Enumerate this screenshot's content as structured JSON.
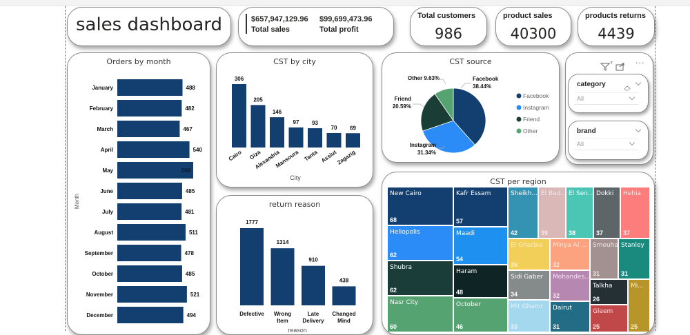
{
  "header": {
    "title": "sales dashboard",
    "total_sales_value": "$657,947,129.96",
    "total_sales_label": "Total sales",
    "total_profit_value": "$99,699,473.96",
    "total_profit_label": "Total profit"
  },
  "kpis": [
    {
      "label": "Total customers",
      "value": "986"
    },
    {
      "label": "product sales",
      "value": "40300"
    },
    {
      "label": "products returns",
      "value": "4439"
    }
  ],
  "colors": {
    "bar": "#123e70",
    "facebook": "#123e70",
    "instagram": "#2b8bf7",
    "friend": "#1a3d35",
    "other": "#56a372"
  },
  "slicers": {
    "toolbar": {
      "filter_icon": "filter-icon",
      "focus_icon": "focus-mode-icon",
      "more_icon": "more-options-icon",
      "more_label": "···"
    },
    "category": {
      "label": "category",
      "value": "All"
    },
    "brand": {
      "label": "brand",
      "value": "All"
    }
  },
  "chart_data": [
    {
      "id": "orders_by_month",
      "type": "bar",
      "orientation": "horizontal",
      "title": "Orders by month",
      "xlabel": "",
      "ylabel": "Month",
      "categories": [
        "January",
        "February",
        "March",
        "April",
        "May",
        "June",
        "July",
        "August",
        "September",
        "October",
        "November",
        "December"
      ],
      "values": [
        488,
        482,
        467,
        540,
        568,
        485,
        481,
        511,
        478,
        485,
        521,
        494
      ],
      "xlim": [
        0,
        568
      ]
    },
    {
      "id": "cst_by_city",
      "type": "bar",
      "title": "CST by city",
      "xlabel": "City",
      "ylabel": "",
      "categories": [
        "Cairo",
        "Giza",
        "Alexandria",
        "Mansoura",
        "Tanta",
        "Assiut",
        "Zagazig"
      ],
      "values": [
        306,
        205,
        146,
        97,
        93,
        70,
        69
      ],
      "ylim": [
        0,
        306
      ]
    },
    {
      "id": "return_reason",
      "type": "bar",
      "title": "return reason",
      "xlabel": "reason",
      "ylabel": "",
      "categories": [
        [
          "Defective"
        ],
        [
          "Wrong",
          "Item"
        ],
        [
          "Late",
          "Delivery"
        ],
        [
          "Changed",
          "Mind"
        ]
      ],
      "values": [
        1777,
        1314,
        910,
        438
      ],
      "ylim": [
        0,
        1777
      ]
    },
    {
      "id": "cst_source",
      "type": "pie",
      "title": "CST source",
      "legend_position": "right",
      "slices": [
        {
          "label": "Facebook",
          "value": 38.44,
          "display": "38.44%",
          "color_key": "facebook"
        },
        {
          "label": "Instagram",
          "value": 31.34,
          "display": "31.34%",
          "color_key": "instagram"
        },
        {
          "label": "Friend",
          "value": 20.59,
          "display": "20.59%",
          "color_key": "friend"
        },
        {
          "label": "Other",
          "value": 9.63,
          "display": "9.63%",
          "color_key": "other"
        }
      ]
    },
    {
      "id": "cst_per_region",
      "type": "treemap",
      "title": "CST per region",
      "items": [
        {
          "label": "New Cairo",
          "value": 68,
          "color": "#123e70",
          "text": "#ffffff"
        },
        {
          "label": "Heliopolis",
          "value": 62,
          "color": "#2b8bf7",
          "text": "#ffffff"
        },
        {
          "label": "Shubra",
          "value": 62,
          "color": "#1b3d3a",
          "text": "#ffffff"
        },
        {
          "label": "Nasr City",
          "value": 60,
          "color": "#56a372",
          "text": "#ffffff"
        },
        {
          "label": "Kafr Essam",
          "value": 57,
          "color": "#123e70",
          "text": "#ffffff"
        },
        {
          "label": "Maadi",
          "value": 54,
          "color": "#1e90f0",
          "text": "#ffffff"
        },
        {
          "label": "Haram",
          "value": 48,
          "color": "#0f2425",
          "text": "#ffffff"
        },
        {
          "label": "October",
          "value": 46,
          "color": "#56a372",
          "text": "#ffffff"
        },
        {
          "label": "Sheikh...",
          "value": 42,
          "color": "#3493b3",
          "text": "#ffffff"
        },
        {
          "label": "El Bad...",
          "value": 39,
          "color": "#dbb8b8",
          "text": "#f5e8e8"
        },
        {
          "label": "El Sen...",
          "value": 38,
          "color": "#4bc6b4",
          "text": "#ffffff"
        },
        {
          "label": "Dokki",
          "value": 37,
          "color": "#5e6569",
          "text": "#ffffff"
        },
        {
          "label": "Hehia",
          "value": 37,
          "color": "#fd7d7d",
          "text": "#ffe6e6"
        },
        {
          "label": "El Gharbia",
          "value": 36,
          "color": "#f2cf59",
          "text": "#fbefbf"
        },
        {
          "label": "Minya Al ...",
          "value": 32,
          "color": "#fca27f",
          "text": "#ffe8dc"
        },
        {
          "label": "Smouha",
          "value": 31,
          "color": "#a39090",
          "text": "#f0e8e8"
        },
        {
          "label": "Stanley",
          "value": 31,
          "color": "#1a8a7e",
          "text": "#ffffff"
        },
        {
          "label": "Sidi Gaber",
          "value": 34,
          "color": "#858a8a",
          "text": "#ffffff"
        },
        {
          "label": "Mohandes...",
          "value": 32,
          "color": "#b687b0",
          "text": "#f5e5f3"
        },
        {
          "label": "Talkha",
          "value": 26,
          "color": "#253035",
          "text": "#ffffff"
        },
        {
          "label": "Mi...",
          "value": 25,
          "color": "#b8952a",
          "text": "#fbeec5"
        },
        {
          "label": "Mit Ghamr",
          "value": 33,
          "color": "#a4d8ef",
          "text": "#e6f4fb"
        },
        {
          "label": "Dairut",
          "value": 31,
          "color": "#226c86",
          "text": "#ffffff"
        },
        {
          "label": "Gleem",
          "value": 25,
          "color": "#c04848",
          "text": "#ffe0e0"
        }
      ]
    }
  ]
}
